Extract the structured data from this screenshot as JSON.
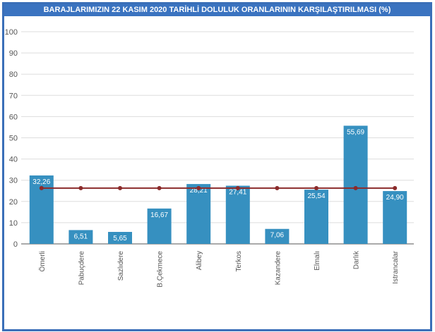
{
  "chart_data": {
    "type": "bar",
    "title": "BARAJLARIMIZIN 22 KASIM 2020 TARİHLİ DOLULUK ORANLARININ KARŞILAŞTIRILMASI (%)",
    "categories": [
      "Ömerli",
      "Pabuçdere",
      "Sazlıdere",
      "B.Çekmece",
      "Alibey",
      "Terkos",
      "Kazandere",
      "Elmalı",
      "Darlık",
      "Istrancalar"
    ],
    "series": [
      {
        "type": "bar",
        "values": [
          32.26,
          6.51,
          5.65,
          16.67,
          28.21,
          27.41,
          7.06,
          25.54,
          55.69,
          24.9
        ],
        "labels": [
          "32,26",
          "6,51",
          "5,65",
          "16,67",
          "28,21",
          "27,41",
          "7,06",
          "25,54",
          "55,69",
          "24,90"
        ],
        "color": "#3690c0"
      },
      {
        "type": "line",
        "values": [
          26.3,
          26.3,
          26.3,
          26.3,
          26.3,
          26.3,
          26.3,
          26.3,
          26.3,
          26.3
        ],
        "color": "#8b2b2b"
      }
    ],
    "ylim": [
      0,
      100
    ],
    "yticks": [
      0,
      10,
      20,
      30,
      40,
      50,
      60,
      70,
      80,
      90,
      100
    ],
    "grid": true,
    "title_bar_color": "#3a73c0"
  }
}
